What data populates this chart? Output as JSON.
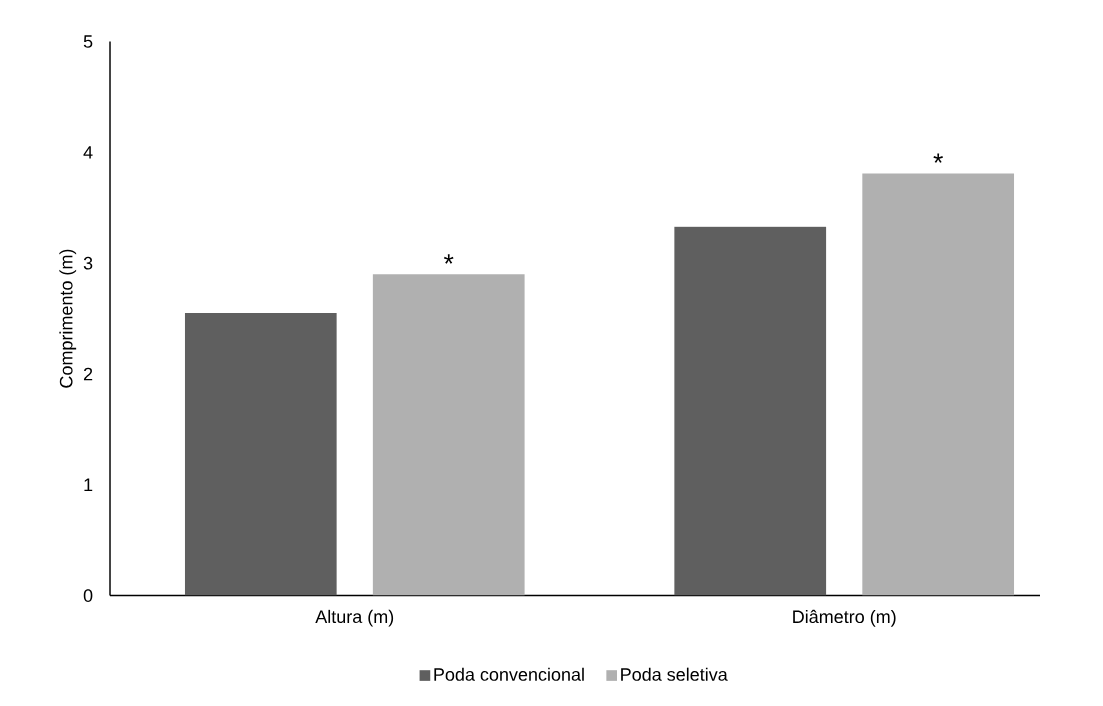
{
  "chart_data": {
    "type": "bar",
    "ylabel": "Comprimento (m)",
    "categories": [
      "Altura (m)",
      "Diâmetro  (m)"
    ],
    "series": [
      {
        "name": "Poda convencional",
        "color": "#5f5f5f",
        "values": [
          2.55,
          3.33
        ]
      },
      {
        "name": "Poda seletiva",
        "color": "#b0b0b0",
        "values": [
          2.9,
          3.81
        ]
      }
    ],
    "ylim": [
      0,
      5
    ],
    "yticks": [
      0,
      1,
      2,
      3,
      4,
      5
    ],
    "grid": false,
    "legend": "bottom",
    "annotations": [
      "*",
      "*"
    ]
  }
}
